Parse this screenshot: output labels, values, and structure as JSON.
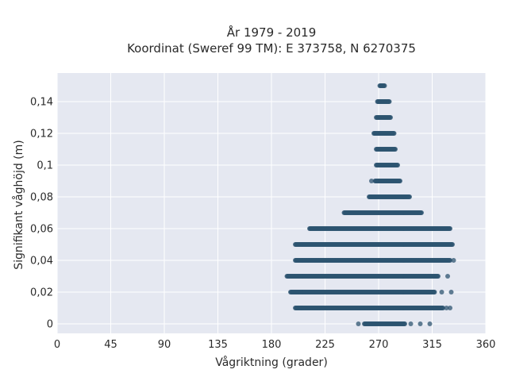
{
  "chart_data": {
    "type": "scatter",
    "title_line1": "År 1979 - 2019",
    "title_line2": "Koordinat (Sweref 99 TM): E 373758, N 6270375",
    "xlabel": "Vågriktning (grader)",
    "ylabel": "Signifikant våghöjd (m)",
    "xlim": [
      0,
      360
    ],
    "ylim": [
      -0.006,
      0.158
    ],
    "xticks": [
      0,
      45,
      90,
      135,
      180,
      225,
      270,
      315,
      360
    ],
    "xtick_labels": [
      "0",
      "45",
      "90",
      "135",
      "180",
      "225",
      "270",
      "315",
      "360"
    ],
    "yticks": [
      0,
      0.02,
      0.04,
      0.06,
      0.08,
      0.1,
      0.12,
      0.14
    ],
    "ytick_labels": [
      "0",
      "0,02",
      "0,04",
      "0,06",
      "0,08",
      "0,1",
      "0,12",
      "0,14"
    ],
    "grid": true,
    "legend": "none",
    "colors": {
      "background": "#e5e8f1",
      "grid": "#ffffff",
      "marker": "#2e5470"
    },
    "bands": [
      {
        "y": 0.0,
        "x_start": 258,
        "x_end": 292,
        "outliers": [
          253,
          297,
          305,
          313
        ]
      },
      {
        "y": 0.01,
        "x_start": 200,
        "x_end": 324,
        "outliers": [
          205,
          327,
          330
        ]
      },
      {
        "y": 0.02,
        "x_start": 196,
        "x_end": 317,
        "outliers": [
          323,
          331
        ]
      },
      {
        "y": 0.03,
        "x_start": 193,
        "x_end": 320,
        "outliers": [
          328
        ]
      },
      {
        "y": 0.04,
        "x_start": 200,
        "x_end": 330,
        "outliers": [
          333
        ]
      },
      {
        "y": 0.05,
        "x_start": 200,
        "x_end": 332,
        "outliers": []
      },
      {
        "y": 0.06,
        "x_start": 212,
        "x_end": 330,
        "outliers": []
      },
      {
        "y": 0.07,
        "x_start": 241,
        "x_end": 306,
        "outliers": []
      },
      {
        "y": 0.08,
        "x_start": 262,
        "x_end": 296,
        "outliers": []
      },
      {
        "y": 0.09,
        "x_start": 267,
        "x_end": 288,
        "outliers": [
          264
        ]
      },
      {
        "y": 0.1,
        "x_start": 268,
        "x_end": 286,
        "outliers": []
      },
      {
        "y": 0.11,
        "x_start": 268,
        "x_end": 284,
        "outliers": []
      },
      {
        "y": 0.12,
        "x_start": 266,
        "x_end": 283,
        "outliers": []
      },
      {
        "y": 0.13,
        "x_start": 268,
        "x_end": 280,
        "outliers": []
      },
      {
        "y": 0.14,
        "x_start": 269,
        "x_end": 279,
        "outliers": []
      },
      {
        "y": 0.15,
        "x_start": 271,
        "x_end": 275,
        "outliers": []
      }
    ]
  }
}
